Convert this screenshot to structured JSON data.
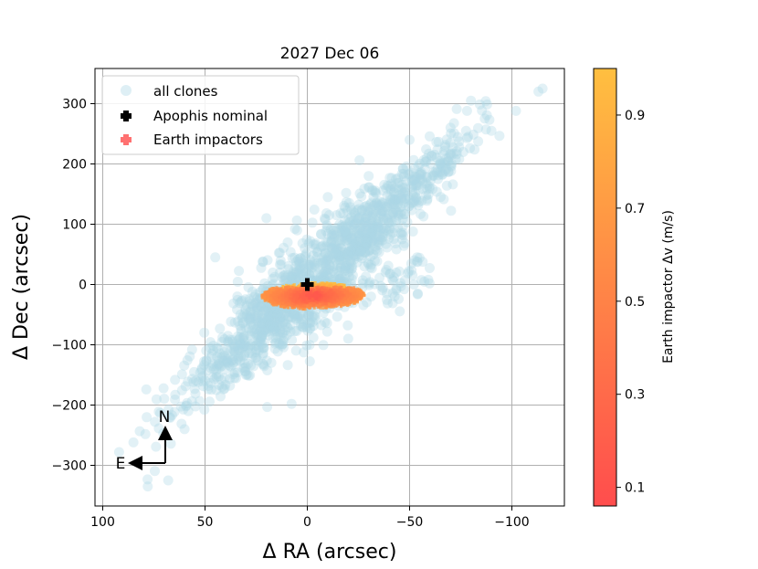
{
  "chart_data": {
    "type": "scatter",
    "title": "2027 Dec 06",
    "xlabel": "Δ RA (arcsec)",
    "ylabel": "Δ Dec (arcsec)",
    "xlim": [
      105,
      -125
    ],
    "ylim": [
      -370,
      360
    ],
    "x_ticks": [
      100,
      50,
      0,
      -50,
      -100
    ],
    "x_tick_labels": [
      "100",
      "50",
      "0",
      "−50",
      "−100"
    ],
    "y_ticks": [
      300,
      200,
      100,
      0,
      -100,
      -200,
      -300
    ],
    "y_tick_labels": [
      "300",
      "200",
      "100",
      "0",
      "−100",
      "−200",
      "−300"
    ],
    "grid": true,
    "legend": {
      "placement": "top-left",
      "entries": [
        "all clones",
        "Apophis nominal",
        "Earth impactors"
      ]
    },
    "series": [
      {
        "name": "all clones",
        "marker": "circle",
        "color": "#add8e6",
        "distribution": "elongated cloud along the line Dec = -3.1 * RA, spanning RA from about +100 to -115 arcsec and Dec from about -330 to +325 arcsec",
        "sample_points": [
          [
            -115,
            325
          ],
          [
            -113,
            320
          ],
          [
            -102,
            288
          ],
          [
            -80,
            305
          ],
          [
            -90,
            255
          ],
          [
            -70,
            260
          ],
          [
            -50,
            240
          ],
          [
            -30,
            180
          ],
          [
            -10,
            145
          ],
          [
            20,
            110
          ],
          [
            45,
            45
          ],
          [
            10,
            -40
          ],
          [
            -20,
            -90
          ],
          [
            30,
            -150
          ],
          [
            60,
            -240
          ],
          [
            68,
            -325
          ],
          [
            78,
            -335
          ],
          [
            92,
            -278
          ],
          [
            85,
            -262
          ]
        ]
      },
      {
        "name": "Apophis nominal",
        "marker": "plus",
        "color": "#000000",
        "points": [
          [
            0,
            0
          ]
        ]
      },
      {
        "name": "Earth impactors",
        "marker": "plus",
        "colormap": "autumn (red to yellow)",
        "distribution": "compact horizontal ellipse centred near RA = -3, Dec = -20, extending RA from about +22 to -27 arcsec and Dec from about -40 to +10 arcsec",
        "value_range": [
          0.06,
          1.0
        ]
      }
    ],
    "colorbar": {
      "label": "Earth impactor Δv (m/s)",
      "range": [
        0.06,
        1.0
      ],
      "ticks": [
        0.1,
        0.3,
        0.5,
        0.7,
        0.9
      ],
      "tick_labels": [
        "0.1",
        "0.3",
        "0.5",
        "0.7",
        "0.9"
      ],
      "colormap": "autumn",
      "color_low": "#ff4d4d",
      "color_high": "#ffbf40"
    },
    "compass": {
      "north": "N",
      "east": "E"
    }
  }
}
